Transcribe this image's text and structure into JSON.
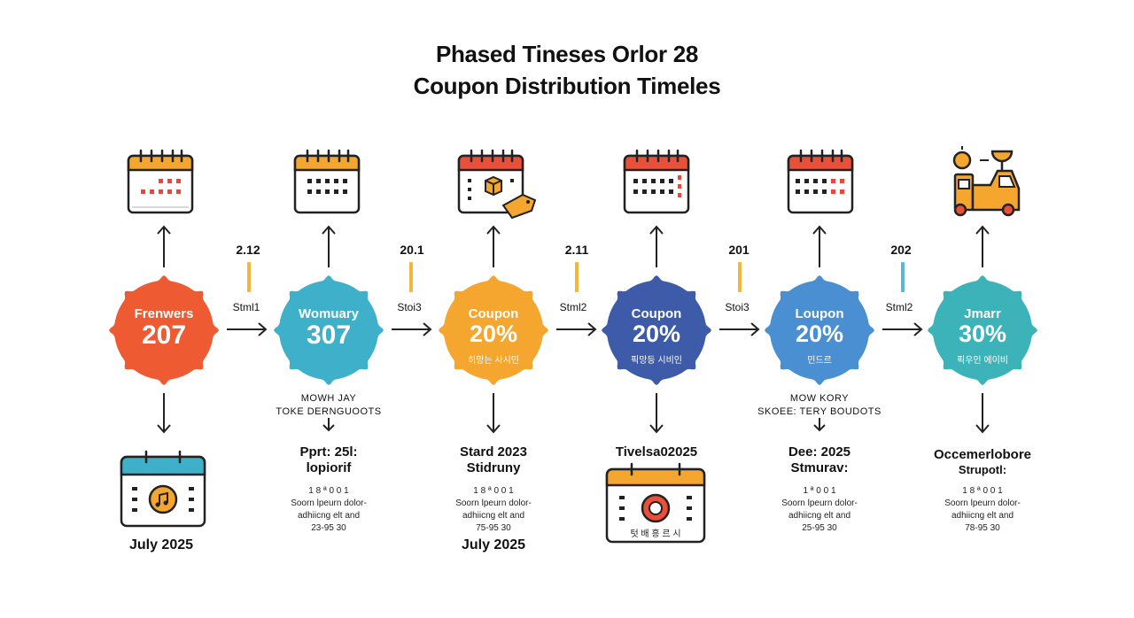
{
  "title": {
    "line1": "Phased Tineses Orlor 28",
    "line2": "Coupon Distribution Timeles"
  },
  "colors": {
    "red": "#ee5a32",
    "teal": "#3fb0c9",
    "orange": "#f4a62e",
    "navy": "#3d5ba8",
    "blue": "#4a8fd1",
    "cyan": "#3bb3b9"
  },
  "badges": [
    {
      "label": "Frenwers",
      "value": "207",
      "sub": ""
    },
    {
      "label": "Womuary",
      "value": "307",
      "sub": ""
    },
    {
      "label": "Coupon",
      "value": "20%",
      "sub": "히망는 사시민"
    },
    {
      "label": "Coupon",
      "value": "20%",
      "sub": "픽망등 시비인"
    },
    {
      "label": "Loupon",
      "value": "20%",
      "sub": "민드르"
    },
    {
      "label": "Jmarr",
      "value": "30%",
      "sub": "픽우인 에이비"
    }
  ],
  "connectors": [
    {
      "number": "2.12",
      "label": "Stml1",
      "color": "#f4b63a"
    },
    {
      "number": "20.1",
      "label": "Stoi3",
      "color": "#f4b63a"
    },
    {
      "number": "2.11",
      "label": "Stml2",
      "color": "#f4b63a"
    },
    {
      "number": "201",
      "label": "Stoi3",
      "color": "#f4b63a"
    },
    {
      "number": "202",
      "label": "Stml2",
      "color": "#5ab8d6"
    }
  ],
  "below": {
    "s1": {
      "date": "July 2025"
    },
    "s2": {
      "caps1": "MOWH JAY",
      "caps2": "TOKE DERNGUOOTS",
      "head1": "Pprt: 25l:",
      "head2": "lopiorif",
      "fine1": "1 8 ª 0 0 1",
      "fine2": "Soorn lpeurn dolor-",
      "fine3": "adhiicng elt and",
      "fine4": "23-95 30"
    },
    "s3": {
      "head1": "Stard 2023",
      "head2": "Stidruny",
      "fine1": "1 8 ª 0 0 1",
      "fine2": "Soorn lpeurn dolor-",
      "fine3": "adhiicng elt and",
      "fine4": "75-95 30",
      "date": "July 2025"
    },
    "s4": {
      "head1": "Tivelsa02025",
      "caption": "텃 배 흥 르 시"
    },
    "s5": {
      "caps1": "MOW KORY",
      "caps2": "SKOEE: TERY BOUDOTS",
      "head1": "Dee: 2025",
      "head2": "Stmurav:",
      "fine1": "1 ª 0 0 1",
      "fine2": "Soorn lpeurn dolor-",
      "fine3": "adhiicng elt and",
      "fine4": "25-95 30"
    },
    "s6": {
      "head1": "Occemerlobore",
      "head2": "Strupotl:",
      "fine1": "1 8 ª 0 0 1",
      "fine2": "Soorn lpeurn dolor-",
      "fine3": "adhiicng elt and",
      "fine4": "78-95 30"
    }
  },
  "icons": {
    "top": [
      "calendar-icon",
      "calendar-icon",
      "calendar-box-tag-icon",
      "calendar-icon",
      "calendar-icon",
      "delivery-truck-icon"
    ],
    "bottom": [
      "calendar-music-icon",
      "calendar-target-icon"
    ]
  }
}
